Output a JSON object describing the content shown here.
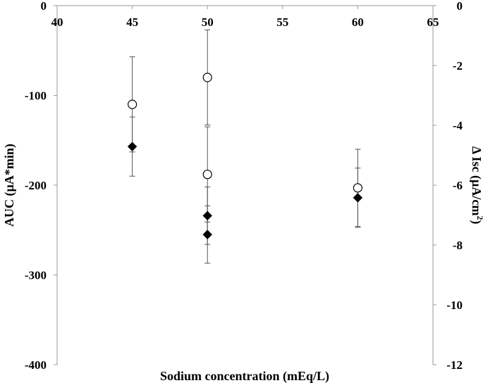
{
  "chart_data": {
    "type": "scatter",
    "xlabel": "Sodium concentration (mEq/L)",
    "ylabel_left": "AUC (µA*min)",
    "ylabel_right_main": "Δ Isc (µA/cm",
    "ylabel_right_sup": "2",
    "ylabel_right_tail": ")",
    "xlim": [
      40,
      65
    ],
    "ylim_left": [
      -400,
      0
    ],
    "ylim_right": [
      -12,
      0
    ],
    "x_ticks": [
      "40",
      "45",
      "50",
      "55",
      "60",
      "65"
    ],
    "y_left_ticks": [
      "0",
      "-100",
      "-200",
      "-300",
      "-400"
    ],
    "y_right_ticks": [
      "0",
      "-2",
      "-4",
      "-6",
      "-8",
      "-10",
      "-12"
    ],
    "grid": false,
    "series": [
      {
        "marker": "open-circle",
        "axis": "left",
        "points": [
          {
            "x": 45,
            "y": -110,
            "err": 53
          },
          {
            "x": 50,
            "y": -80,
            "err": 53
          },
          {
            "x": 50,
            "y": -188,
            "err": 53
          },
          {
            "x": 60,
            "y": -203,
            "err": 43
          }
        ]
      },
      {
        "marker": "filled-diamond",
        "axis": "left",
        "points": [
          {
            "x": 45,
            "y": -157,
            "err": 33
          },
          {
            "x": 50,
            "y": -234,
            "err": 32
          },
          {
            "x": 50,
            "y": -255,
            "err": 32
          },
          {
            "x": 60,
            "y": -214,
            "err": 33
          }
        ]
      }
    ]
  }
}
